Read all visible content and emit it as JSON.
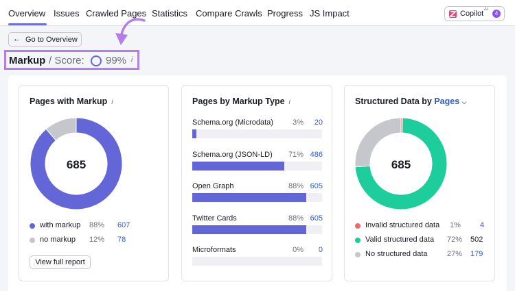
{
  "nav": {
    "tabs": [
      {
        "label": "Overview"
      },
      {
        "label": "Issues"
      },
      {
        "label": "Crawled Pages"
      },
      {
        "label": "Statistics"
      },
      {
        "label": "Compare Crawls"
      },
      {
        "label": "Progress"
      },
      {
        "label": "JS Impact"
      }
    ],
    "copilot": {
      "label": "Copilot",
      "superscript": "AI",
      "badge": "4"
    }
  },
  "back_button": {
    "label": "Go to Overview"
  },
  "header": {
    "title": "Markup",
    "score_label": "/ Score:",
    "score_value": "99%",
    "info": "i",
    "score_fraction": 0.99
  },
  "colors": {
    "accent": "#6366d6",
    "highlight": "#b37ee6",
    "link": "#2e5bd0",
    "green": "#1ecd9c",
    "red": "#ef6a6a",
    "gray": "#c6c7cc"
  },
  "cards": {
    "pages_with_markup": {
      "title": "Pages with Markup",
      "info": "i",
      "total": "685",
      "legend": [
        {
          "label": "with markup",
          "pct": "88%",
          "count": "607",
          "color": "#6366d6"
        },
        {
          "label": "no markup",
          "pct": "12%",
          "count": "78",
          "color": "#c6c7cc"
        }
      ],
      "view_button": "View full report"
    },
    "markup_type": {
      "title": "Pages by Markup Type",
      "info": "i",
      "rows": [
        {
          "label": "Schema.org (Microdata)",
          "pct": "3%",
          "count": "20",
          "fraction": 0.03
        },
        {
          "label": "Schema.org (JSON-LD)",
          "pct": "71%",
          "count": "486",
          "fraction": 0.71
        },
        {
          "label": "Open Graph",
          "pct": "88%",
          "count": "605",
          "fraction": 0.88
        },
        {
          "label": "Twitter Cards",
          "pct": "88%",
          "count": "605",
          "fraction": 0.88
        },
        {
          "label": "Microformats",
          "pct": "0%",
          "count": "0",
          "fraction": 0.0
        }
      ]
    },
    "structured_data": {
      "title": "Structured Data by",
      "selector": "Pages",
      "total": "685",
      "legend": [
        {
          "label": "Invalid structured data",
          "pct": "1%",
          "count": "4",
          "color": "#ef6a6a"
        },
        {
          "label": "Valid structured data",
          "pct": "72%",
          "count": "502",
          "color": "#1ecd9c"
        },
        {
          "label": "No structured data",
          "pct": "27%",
          "count": "179",
          "color": "#c6c7cc"
        }
      ]
    }
  },
  "chart_data": [
    {
      "type": "pie",
      "title": "Pages with Markup",
      "categories": [
        "with markup",
        "no markup"
      ],
      "values": [
        607,
        78
      ],
      "percent": [
        88,
        12
      ]
    },
    {
      "type": "bar",
      "title": "Pages by Markup Type",
      "categories": [
        "Schema.org (Microdata)",
        "Schema.org (JSON-LD)",
        "Open Graph",
        "Twitter Cards",
        "Microformats"
      ],
      "values": [
        20,
        486,
        605,
        605,
        0
      ],
      "percent": [
        3,
        71,
        88,
        88,
        0
      ]
    },
    {
      "type": "pie",
      "title": "Structured Data by Pages",
      "categories": [
        "Invalid structured data",
        "Valid structured data",
        "No structured data"
      ],
      "values": [
        4,
        502,
        179
      ],
      "percent": [
        1,
        72,
        27
      ]
    }
  ]
}
